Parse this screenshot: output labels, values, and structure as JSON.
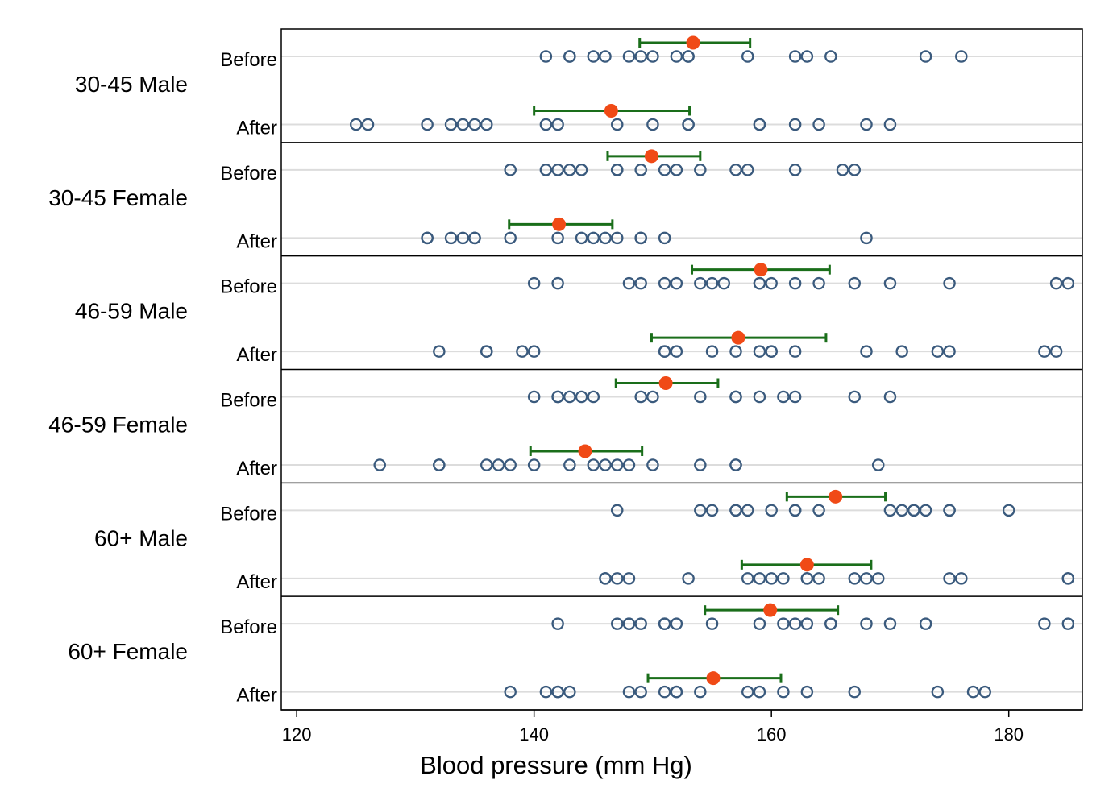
{
  "chart_data": {
    "type": "scatter",
    "xlabel": "Blood pressure (mm Hg)",
    "ylabel": "",
    "xlim": [
      118.7,
      186.2
    ],
    "xticks": [
      120,
      140,
      160,
      180
    ],
    "grid": "horizontal reference lines at each row",
    "legend": "none",
    "colors": {
      "points": "#3a5a7d",
      "mean": "#f04a16",
      "ci": "#1a6e1a",
      "rowline": "#dcdcdc",
      "frame": "#000000"
    },
    "groups": [
      {
        "label": "30-45 Male",
        "rows": [
          {
            "label": "Before",
            "mean": 153.4,
            "ci": [
              148.9,
              158.2
            ],
            "values": [
              141,
              143,
              143,
              145,
              146,
              148,
              149,
              150,
              152,
              153,
              153,
              158,
              162,
              163,
              165,
              173,
              176
            ]
          },
          {
            "label": "After",
            "mean": 146.5,
            "ci": [
              140.0,
              153.1
            ],
            "values": [
              125,
              126,
              131,
              133,
              134,
              135,
              136,
              141,
              142,
              147,
              150,
              153,
              153,
              159,
              159,
              162,
              164,
              168,
              170
            ]
          }
        ]
      },
      {
        "label": "30-45 Female",
        "rows": [
          {
            "label": "Before",
            "mean": 149.9,
            "ci": [
              146.2,
              154.0
            ],
            "values": [
              138,
              141,
              142,
              143,
              144,
              147,
              147,
              149,
              151,
              152,
              154,
              157,
              158,
              162,
              166,
              167
            ]
          },
          {
            "label": "After",
            "mean": 142.1,
            "ci": [
              137.9,
              146.6
            ],
            "values": [
              131,
              131,
              133,
              134,
              135,
              135,
              138,
              142,
              144,
              145,
              146,
              147,
              149,
              149,
              151,
              168
            ]
          }
        ]
      },
      {
        "label": "46-59 Male",
        "rows": [
          {
            "label": "Before",
            "mean": 159.1,
            "ci": [
              153.3,
              164.9
            ],
            "values": [
              140,
              142,
              148,
              149,
              151,
              152,
              154,
              155,
              156,
              159,
              159,
              160,
              162,
              164,
              167,
              170,
              175,
              184,
              185
            ]
          },
          {
            "label": "After",
            "mean": 157.2,
            "ci": [
              149.9,
              164.6
            ],
            "values": [
              132,
              136,
              136,
              139,
              140,
              151,
              151,
              152,
              155,
              157,
              159,
              160,
              160,
              162,
              168,
              171,
              174,
              175,
              183,
              184
            ]
          }
        ]
      },
      {
        "label": "46-59 Female",
        "rows": [
          {
            "label": "Before",
            "mean": 151.1,
            "ci": [
              146.9,
              155.5
            ],
            "values": [
              140,
              142,
              142,
              143,
              144,
              145,
              149,
              150,
              154,
              157,
              157,
              159,
              161,
              162,
              167,
              170
            ]
          },
          {
            "label": "After",
            "mean": 144.3,
            "ci": [
              139.7,
              149.1
            ],
            "values": [
              127,
              132,
              132,
              136,
              137,
              138,
              140,
              143,
              145,
              146,
              147,
              148,
              150,
              154,
              157,
              157,
              169
            ]
          }
        ]
      },
      {
        "label": "60+ Male",
        "rows": [
          {
            "label": "Before",
            "mean": 165.4,
            "ci": [
              161.3,
              169.6
            ],
            "values": [
              147,
              154,
              155,
              157,
              157,
              158,
              160,
              162,
              162,
              164,
              170,
              171,
              172,
              172,
              173,
              175,
              175,
              180
            ]
          },
          {
            "label": "After",
            "mean": 163.0,
            "ci": [
              157.5,
              168.4
            ],
            "values": [
              146,
              146,
              147,
              148,
              153,
              158,
              159,
              160,
              161,
              163,
              163,
              164,
              167,
              168,
              169,
              175,
              176,
              185,
              185
            ]
          }
        ]
      },
      {
        "label": "60+ Female",
        "rows": [
          {
            "label": "Before",
            "mean": 159.9,
            "ci": [
              154.4,
              165.6
            ],
            "values": [
              142,
              147,
              148,
              148,
              149,
              151,
              151,
              152,
              155,
              159,
              161,
              162,
              163,
              165,
              165,
              168,
              170,
              173,
              183,
              185
            ]
          },
          {
            "label": "After",
            "mean": 155.1,
            "ci": [
              149.6,
              160.8
            ],
            "values": [
              138,
              141,
              142,
              142,
              143,
              148,
              149,
              151,
              152,
              152,
              154,
              158,
              159,
              161,
              163,
              167,
              174,
              177,
              178
            ]
          }
        ]
      }
    ]
  }
}
